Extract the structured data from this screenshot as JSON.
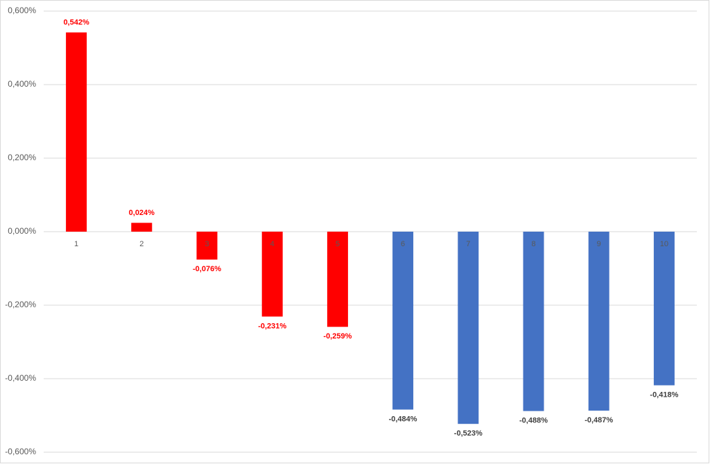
{
  "chart_data": {
    "type": "bar",
    "categories": [
      "1",
      "2",
      "3",
      "4",
      "5",
      "6",
      "7",
      "8",
      "9",
      "10"
    ],
    "values": [
      0.542,
      0.024,
      -0.076,
      -0.231,
      -0.259,
      -0.484,
      -0.523,
      -0.488,
      -0.487,
      -0.418
    ],
    "value_labels": [
      "0,542%",
      "0,024%",
      "-0,076%",
      "-0,231%",
      "-0,259%",
      "-0,484%",
      "-0,523%",
      "-0,488%",
      "-0,487%",
      "-0,418%"
    ],
    "colors": [
      "#ff0000",
      "#ff0000",
      "#ff0000",
      "#ff0000",
      "#ff0000",
      "#4472c4",
      "#4472c4",
      "#4472c4",
      "#4472c4",
      "#4472c4"
    ],
    "value_label_colors": [
      "#ff0000",
      "#ff0000",
      "#ff0000",
      "#ff0000",
      "#ff0000",
      "#404040",
      "#404040",
      "#404040",
      "#404040",
      "#404040"
    ],
    "ylim": [
      -0.6,
      0.6
    ],
    "yticks": [
      {
        "value": -0.6,
        "label": "-0,600%"
      },
      {
        "value": -0.4,
        "label": "-0,400%"
      },
      {
        "value": -0.2,
        "label": "-0,200%"
      },
      {
        "value": 0,
        "label": "0,000%"
      },
      {
        "value": 0.2,
        "label": "0,200%"
      },
      {
        "value": 0.4,
        "label": "0,400%"
      },
      {
        "value": 0.6,
        "label": "0,600%"
      }
    ],
    "grid": true
  }
}
